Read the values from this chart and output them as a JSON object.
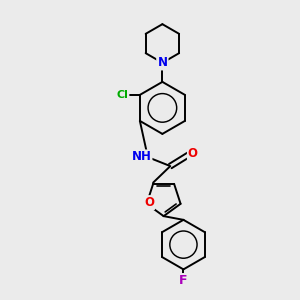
{
  "background_color": "#ebebeb",
  "bond_color": "#000000",
  "atom_colors": {
    "N": "#0000ee",
    "O": "#ee0000",
    "Cl": "#00aa00",
    "F": "#aa00bb",
    "H": "#000000"
  },
  "figsize": [
    3.0,
    3.0
  ],
  "dpi": 100,
  "lw": 1.4,
  "fs": 8.5
}
